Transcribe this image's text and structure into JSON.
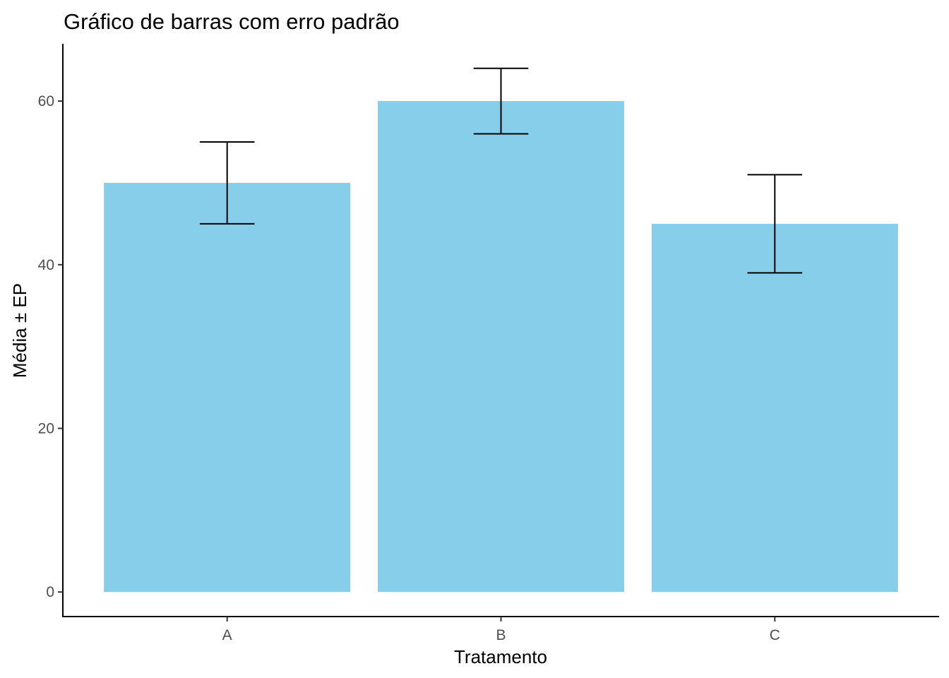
{
  "chart_data": {
    "type": "bar",
    "title": "Gráfico de barras com erro padrão",
    "xlabel": "Tratamento",
    "ylabel": "Média ± EP",
    "categories": [
      "A",
      "B",
      "C"
    ],
    "values": [
      50,
      60,
      45
    ],
    "error_low": [
      45,
      56,
      39
    ],
    "error_high": [
      55,
      64,
      51
    ],
    "ylim": [
      -3,
      67
    ],
    "yticks": [
      0,
      20,
      40,
      60
    ],
    "grid": false,
    "bar_color": "#87CEEB",
    "error_color": "#000000"
  }
}
